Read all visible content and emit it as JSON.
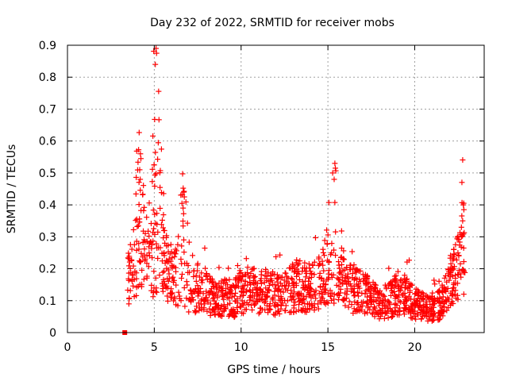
{
  "chart_data": {
    "type": "scatter",
    "title": "Day 232 of 2022, SRMTID for receiver mobs",
    "xlabel": "GPS time / hours",
    "ylabel": "SRMTID / TECUs",
    "xlim": [
      0,
      24
    ],
    "ylim": [
      0,
      0.9
    ],
    "xticks": [
      0,
      5,
      10,
      15,
      20
    ],
    "yticks": [
      0,
      0.1,
      0.2,
      0.3,
      0.4,
      0.5,
      0.6,
      0.7,
      0.8,
      0.9
    ],
    "xtick_labels": [
      "0",
      "5",
      "10",
      "15",
      "20"
    ],
    "ytick_labels": [
      "0",
      "0.1",
      "0.2",
      "0.3",
      "0.4",
      "0.5",
      "0.6",
      "0.7",
      "0.8",
      "0.9"
    ],
    "grid": true,
    "marker": "+",
    "color": "#ff0000",
    "x_range_observed": [
      3.3,
      22.9
    ],
    "outlier": {
      "x": 3.3,
      "y": 0
    },
    "peaks": [
      {
        "x": 5.1,
        "y": 0.89
      },
      {
        "x": 15.4,
        "y": 0.53
      },
      {
        "x": 4.2,
        "y": 0.56
      },
      {
        "x": 6.7,
        "y": 0.44
      },
      {
        "x": 22.8,
        "y": 0.4
      }
    ],
    "baseline": [
      {
        "x": 3.5,
        "y": 0.16
      },
      {
        "x": 4.0,
        "y": 0.24
      },
      {
        "x": 4.5,
        "y": 0.2
      },
      {
        "x": 5.0,
        "y": 0.25
      },
      {
        "x": 5.5,
        "y": 0.22
      },
      {
        "x": 6.0,
        "y": 0.18
      },
      {
        "x": 6.5,
        "y": 0.16
      },
      {
        "x": 7.0,
        "y": 0.14
      },
      {
        "x": 7.5,
        "y": 0.13
      },
      {
        "x": 8.0,
        "y": 0.13
      },
      {
        "x": 8.5,
        "y": 0.1
      },
      {
        "x": 9.0,
        "y": 0.11
      },
      {
        "x": 9.5,
        "y": 0.1
      },
      {
        "x": 10.0,
        "y": 0.13
      },
      {
        "x": 10.5,
        "y": 0.14
      },
      {
        "x": 11.0,
        "y": 0.12
      },
      {
        "x": 11.5,
        "y": 0.13
      },
      {
        "x": 12.0,
        "y": 0.12
      },
      {
        "x": 12.5,
        "y": 0.12
      },
      {
        "x": 13.0,
        "y": 0.14
      },
      {
        "x": 13.5,
        "y": 0.15
      },
      {
        "x": 14.0,
        "y": 0.13
      },
      {
        "x": 14.5,
        "y": 0.16
      },
      {
        "x": 15.0,
        "y": 0.2
      },
      {
        "x": 15.5,
        "y": 0.16
      },
      {
        "x": 16.0,
        "y": 0.15
      },
      {
        "x": 16.5,
        "y": 0.13
      },
      {
        "x": 17.0,
        "y": 0.13
      },
      {
        "x": 17.5,
        "y": 0.11
      },
      {
        "x": 18.0,
        "y": 0.09
      },
      {
        "x": 18.5,
        "y": 0.1
      },
      {
        "x": 19.0,
        "y": 0.12
      },
      {
        "x": 19.5,
        "y": 0.12
      },
      {
        "x": 20.0,
        "y": 0.09
      },
      {
        "x": 20.5,
        "y": 0.08
      },
      {
        "x": 21.0,
        "y": 0.07
      },
      {
        "x": 21.5,
        "y": 0.09
      },
      {
        "x": 22.0,
        "y": 0.14
      },
      {
        "x": 22.5,
        "y": 0.2
      },
      {
        "x": 22.9,
        "y": 0.28
      }
    ]
  }
}
